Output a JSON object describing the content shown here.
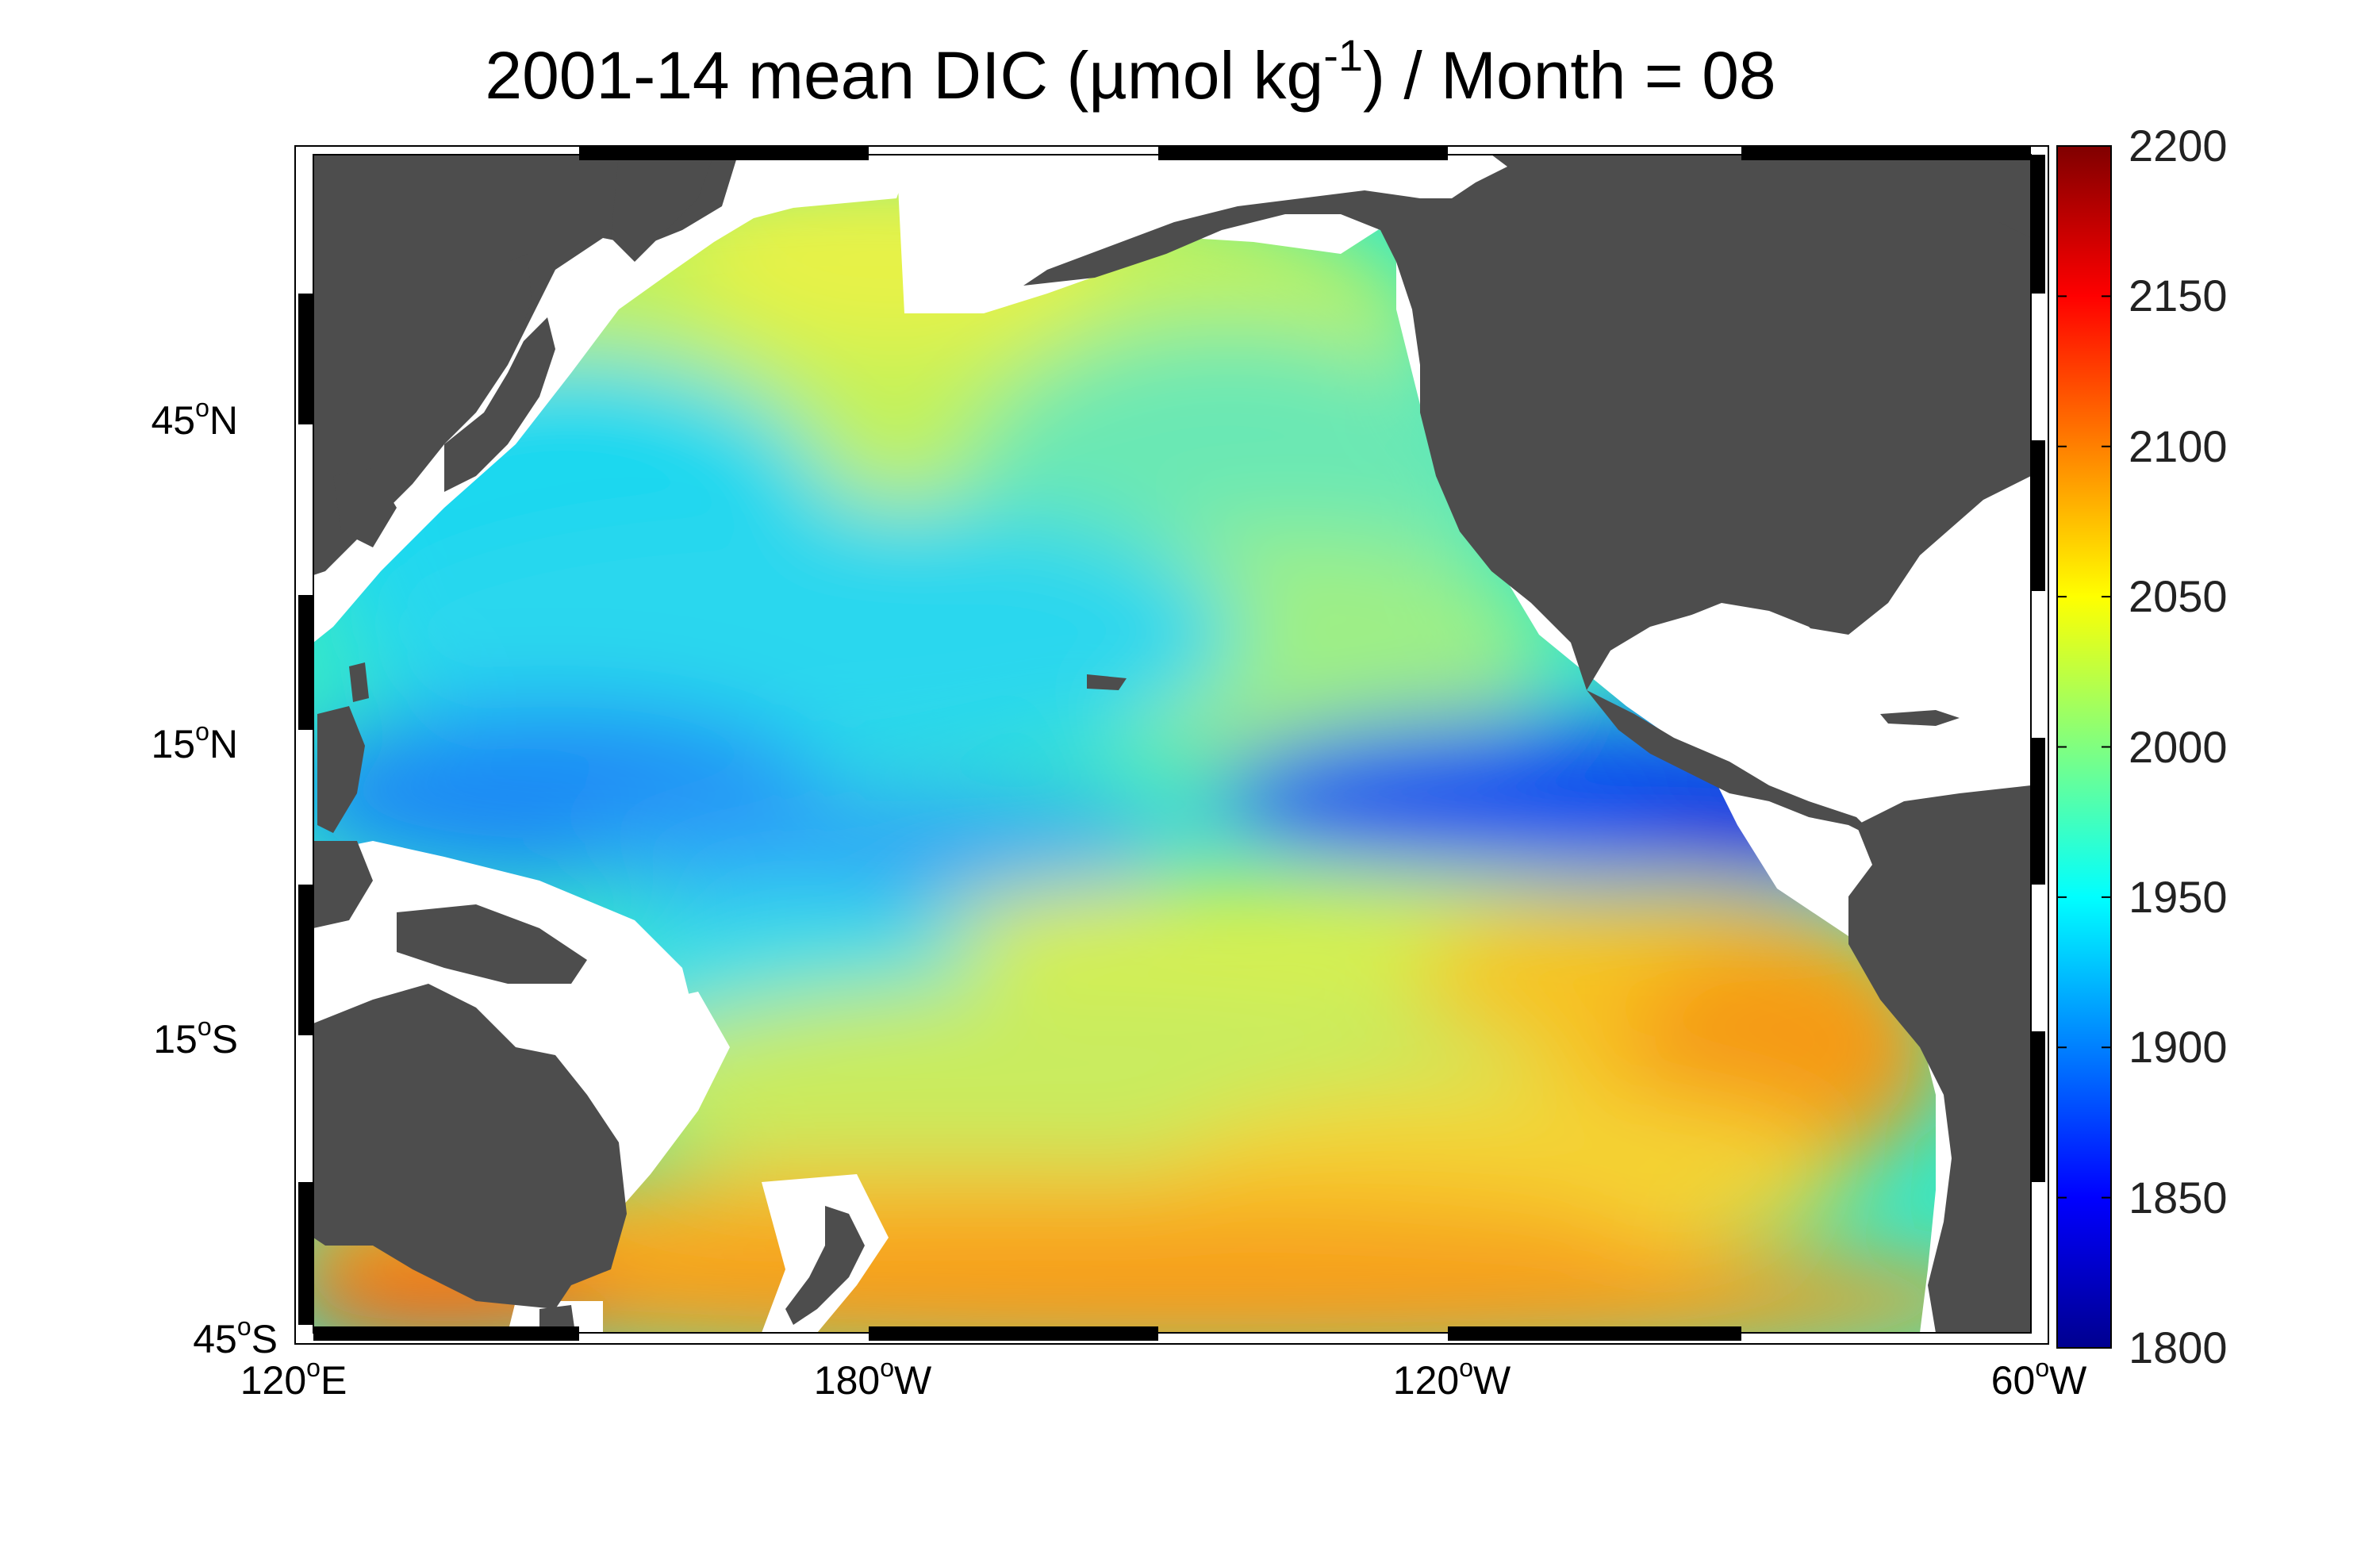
{
  "title": {
    "prefix": "2001-14 mean DIC (µmol kg",
    "exponent": "-1",
    "suffix": ") / Month = 08"
  },
  "colors": {
    "land": "#4d4d4d",
    "no_data": "#ffffff",
    "frame": "#000000",
    "colorscale": [
      "#00008f",
      "#0000ff",
      "#0080ff",
      "#00ffff",
      "#80ff80",
      "#ffff00",
      "#ff8000",
      "#ff0000",
      "#800000"
    ]
  },
  "map": {
    "variable": "DIC",
    "units": "µmol kg-1",
    "lon_range": [
      120,
      300
    ],
    "lat_range": [
      -45,
      65
    ],
    "lat_ticks": [
      {
        "deg": "45",
        "hemi": "N"
      },
      {
        "deg": "15",
        "hemi": "N"
      },
      {
        "deg": "15",
        "hemi": "S"
      },
      {
        "deg": "45",
        "hemi": "S"
      }
    ],
    "lon_ticks": [
      {
        "deg": "120",
        "hemi": "E"
      },
      {
        "deg": "180",
        "hemi": "W"
      },
      {
        "deg": "120",
        "hemi": "W"
      },
      {
        "deg": "60",
        "hemi": "W"
      }
    ]
  },
  "colorbar": {
    "min": 1800,
    "max": 2200,
    "ticks": [
      "2200",
      "2150",
      "2100",
      "2050",
      "2000",
      "1950",
      "1900",
      "1850",
      "1800"
    ]
  },
  "field_regions": [
    {
      "region": "north-pacific-subpolar",
      "approx_value": 2025
    },
    {
      "region": "kuroshio-extension",
      "approx_value": 1950
    },
    {
      "region": "northeast-pacific",
      "approx_value": 1980
    },
    {
      "region": "west-pacific-warm-pool",
      "approx_value": 1890
    },
    {
      "region": "eastern-tropical-north-pacific",
      "approx_value": 1840
    },
    {
      "region": "equatorial-pacific",
      "approx_value": 2040
    },
    {
      "region": "southeast-pacific",
      "approx_value": 2090
    },
    {
      "region": "south-pacific-subtropical",
      "approx_value": 2060
    },
    {
      "region": "southern-high-latitude",
      "approx_value": 2110
    }
  ]
}
